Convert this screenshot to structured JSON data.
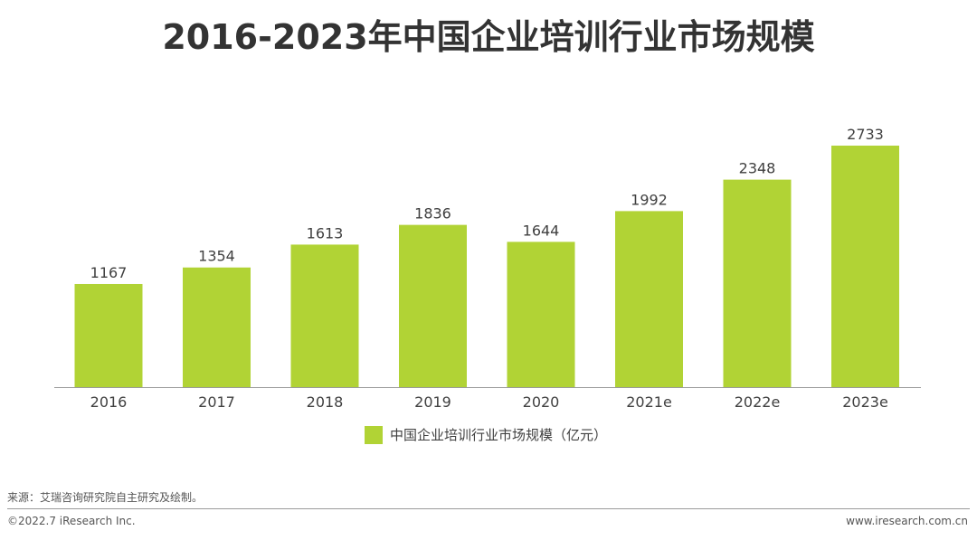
{
  "title": "2016-2023年中国企业培训行业市场规模",
  "chart_data": {
    "type": "bar",
    "categories": [
      "2016",
      "2017",
      "2018",
      "2019",
      "2020",
      "2021e",
      "2022e",
      "2023e"
    ],
    "series": [
      {
        "name": "中国企业培训行业市场规模（亿元）",
        "values": [
          1167,
          1354,
          1613,
          1836,
          1644,
          1992,
          2348,
          2733
        ]
      }
    ],
    "data_labels": [
      "1167",
      "1354",
      "1613",
      "1836",
      "1644",
      "1992",
      "2348",
      "2733"
    ],
    "title": "2016-2023年中国企业培训行业市场规模",
    "xlabel": "",
    "ylabel": "",
    "ylim": [
      0,
      2733
    ],
    "grid": false,
    "legend_position": "bottom",
    "colors": {
      "bar": "#b1d335",
      "axis": "#9a9a9a"
    }
  },
  "legend": {
    "label": "中国企业培训行业市场规模（亿元）"
  },
  "footer": {
    "source": "来源：艾瑞咨询研究院自主研究及绘制。",
    "copyright": "©2022.7 iResearch Inc.",
    "website": "www.iresearch.com.cn"
  }
}
